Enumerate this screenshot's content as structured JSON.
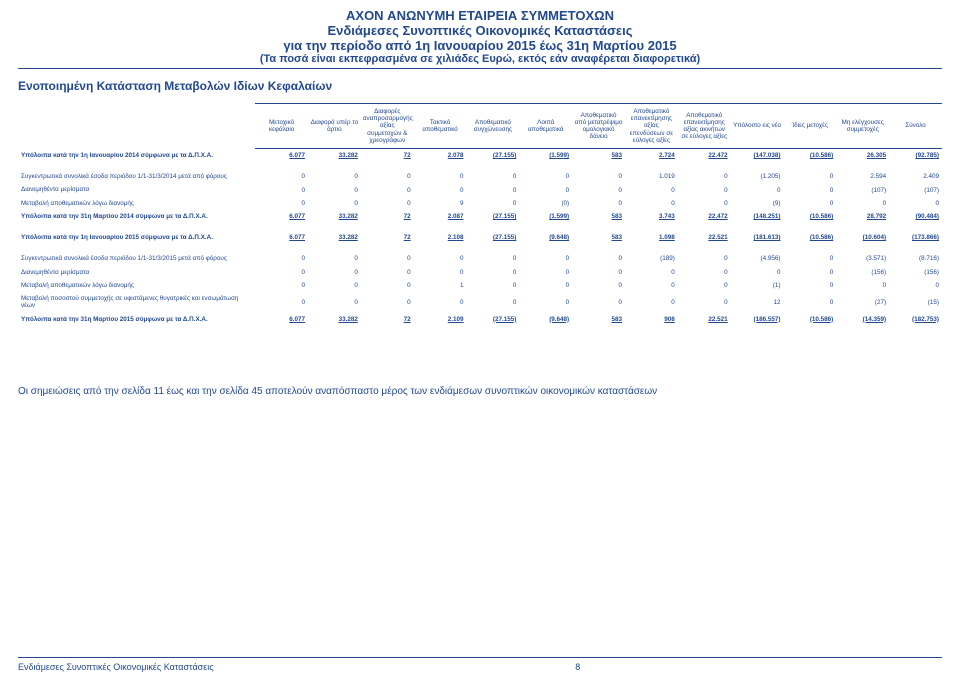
{
  "header": {
    "line1": "AXON ΑΝΩΝΥΜΗ ΕΤΑΙΡΕΙΑ ΣΥΜΜΕΤΟΧΩΝ",
    "line2": "Ενδιάμεσες Συνοπτικές Οικονομικές Καταστάσεις",
    "line3": "για την περίοδο από 1η Ιανουαρίου 2015 έως 31η Μαρτίου 2015",
    "line4": "(Τα ποσά είναι εκπεφρασμένα σε χιλιάδες Ευρώ, εκτός εάν αναφέρεται διαφορετικά)"
  },
  "sectionTitle": "Ενοποιημένη Κατάσταση Μεταβολών Ιδίων Κεφαλαίων",
  "columns": [
    "Μετοχικό κεφάλαιο",
    "Διαφορά υπέρ το άρτιο",
    "Διαφορές αναπροσαρμογής αξίας συμμετοχών & χρεογράφων",
    "Τακτικό αποθεματικό",
    "Αποθεματικό συγχώνευσης",
    "Λοιπά αποθεματικά",
    "Αποθεματικό από μετατρέψιμο ομολογιακό δάνειο",
    "Αποθεματικό επανεκτίμησης αξίας επενδύσεων σε εύλογες αξίες",
    "Αποθεματικό επανεκτίμησης αξίας ακινήτων σε εύλογες αξίες",
    "Υπόλοιπο εις νέο",
    "Ίδιες μετοχές",
    "Μη ελέγχουσες συμμετοχές",
    "Σύνολο"
  ],
  "rows": [
    {
      "label": "Υπόλοιπα κατά την 1η Ιανουαρίου 2014 σύμφωνα με τα Δ.Π.Χ.Α.",
      "cells": [
        "6.077",
        "33.282",
        "72",
        "2.078",
        "(27.155)",
        "(1.599)",
        "583",
        "2.724",
        "22.472",
        "(147.038)",
        "(10.586)",
        "26.305",
        "(92.785)"
      ],
      "bold": true,
      "underline": true
    },
    {
      "spacer": true
    },
    {
      "label": "Συγκεντρωτικά συνολικά έσοδα περιόδου 1/1-31/3/2014 μετά από φόρους",
      "cells": [
        "0",
        "0",
        "0",
        "0",
        "0",
        "0",
        "0",
        "1.019",
        "0",
        "(1.205)",
        "0",
        "2.594",
        "2.409"
      ],
      "bold": false
    },
    {
      "label": "Διανεμηθέντα μερίσματα",
      "cells": [
        "0",
        "0",
        "0",
        "0",
        "0",
        "0",
        "0",
        "0",
        "0",
        "0",
        "0",
        "(107)",
        "(107)"
      ],
      "bold": false
    },
    {
      "label": "Μεταβολή αποθεματικών λόγω διανομής",
      "cells": [
        "0",
        "0",
        "0",
        "9",
        "0",
        "(0)",
        "0",
        "0",
        "0",
        "(9)",
        "0",
        "0",
        "0"
      ],
      "bold": false
    },
    {
      "label": "Υπόλοιπα κατά την 31η Μαρτίου 2014 σύμφωνα με τα Δ.Π.Χ.Α.",
      "cells": [
        "6.077",
        "33.282",
        "72",
        "2.087",
        "(27.155)",
        "(1.599)",
        "583",
        "3.743",
        "22.472",
        "(148.251)",
        "(10.586)",
        "28.792",
        "(90.484)"
      ],
      "bold": true,
      "underline": true
    },
    {
      "spacer": true
    },
    {
      "label": "Υπόλοιπα κατά την 1η Ιανουαρίου 2015 σύμφωνα με τα Δ.Π.Χ.Α.",
      "cells": [
        "6.077",
        "33.282",
        "72",
        "2.108",
        "(27.155)",
        "(9.648)",
        "583",
        "1.098",
        "22.521",
        "(181.613)",
        "(10.586)",
        "(10.604)",
        "(173.866)"
      ],
      "bold": true,
      "underline": true
    },
    {
      "spacer": true
    },
    {
      "label": "Συγκεντρωτικά συνολικά έσοδα περιόδου 1/1-31/3/2015 μετά από φόρους",
      "cells": [
        "0",
        "0",
        "0",
        "0",
        "0",
        "0",
        "0",
        "(189)",
        "0",
        "(4.956)",
        "0",
        "(3.571)",
        "(8.716)"
      ],
      "bold": false
    },
    {
      "label": "Διανεμηθέντα μερίσματα",
      "cells": [
        "0",
        "0",
        "0",
        "0",
        "0",
        "0",
        "0",
        "0",
        "0",
        "0",
        "0",
        "(156)",
        "(156)"
      ],
      "bold": false
    },
    {
      "label": "Μεταβολή αποθεματικών λόγω διανομής",
      "cells": [
        "0",
        "0",
        "0",
        "1",
        "0",
        "0",
        "0",
        "0",
        "0",
        "(1)",
        "0",
        "0",
        "0"
      ],
      "bold": false
    },
    {
      "label": "Μεταβολή ποσοστού συμμετοχής σε υφιστάμενες θυγατρικές και ενσωμάτωση νέων",
      "cells": [
        "0",
        "0",
        "0",
        "0",
        "0",
        "0",
        "0",
        "0",
        "0",
        "12",
        "0",
        "(27)",
        "(15)"
      ],
      "bold": false
    },
    {
      "label": "Υπόλοιπα κατά την 31η Μαρτίου 2015 σύμφωνα με τα Δ.Π.Χ.Α.",
      "cells": [
        "6.077",
        "33.282",
        "72",
        "2.109",
        "(27.155)",
        "(9.648)",
        "583",
        "908",
        "22.521",
        "(186.557)",
        "(10.586)",
        "(14.359)",
        "(182.753)"
      ],
      "bold": true,
      "underline": true
    }
  ],
  "notes": "Οι σημειώσεις από την σελίδα 11 έως και την σελίδα 45 αποτελούν αναπόσπαστο μέρος των ενδιάμεσων συνοπτικών οικονομικών καταστάσεων",
  "footer": {
    "text": "Ενδιάμεσες Συνοπτικές Οικονομικές Καταστάσεις",
    "page": "8"
  }
}
